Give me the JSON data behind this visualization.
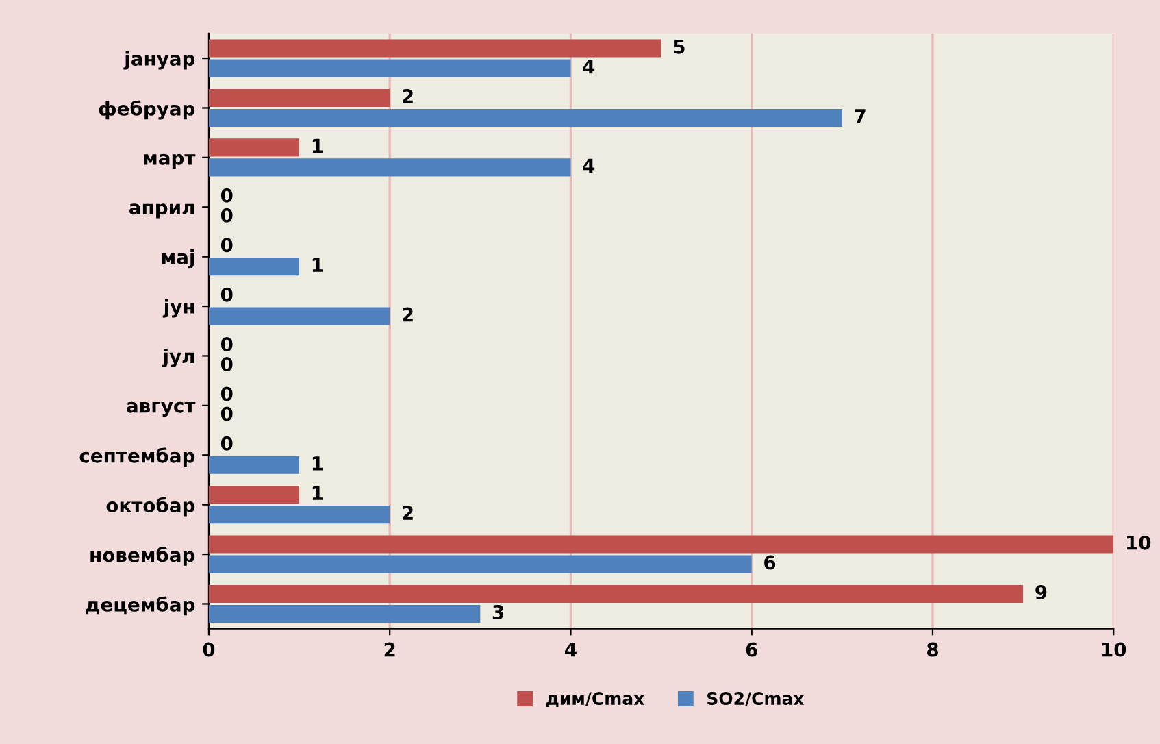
{
  "chart_data": {
    "type": "bar",
    "orientation": "horizontal",
    "categories": [
      "јануар",
      "фебруар",
      "март",
      "април",
      "мај",
      "јун",
      "јул",
      "август",
      "септембар",
      "октобар",
      "новембар",
      "децембар"
    ],
    "series": [
      {
        "name": "дим/Cmax",
        "color": "#c0504d",
        "values": [
          5,
          2,
          1,
          0,
          0,
          0,
          0,
          0,
          0,
          1,
          10,
          9
        ]
      },
      {
        "name": "SO2/Cmax",
        "color": "#4f81bd",
        "values": [
          4,
          7,
          4,
          0,
          1,
          2,
          0,
          0,
          1,
          2,
          6,
          3
        ]
      }
    ],
    "xlim": [
      0,
      10
    ],
    "xticks": [
      0,
      2,
      4,
      6,
      8,
      10
    ],
    "grid": "x",
    "legend": "bottom",
    "data_labels": true
  }
}
